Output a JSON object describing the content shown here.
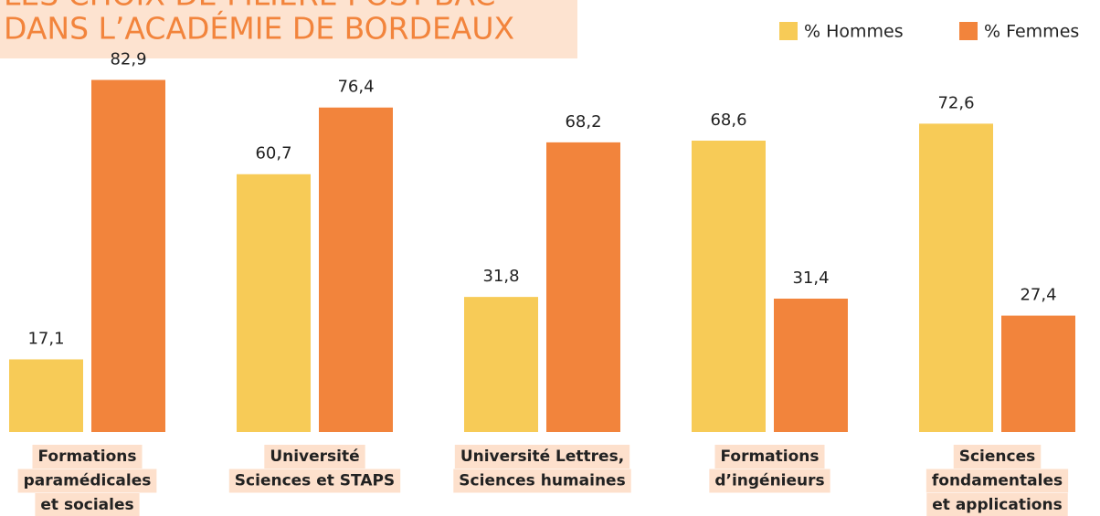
{
  "chart_data": {
    "type": "bar",
    "title": [
      "LES CHOIX DE FILIÈRE POST-BAC",
      "DANS L’ACADÉMIE DE BORDEAUX"
    ],
    "categories": [
      [
        "Formations",
        "paramédicales",
        "et sociales"
      ],
      [
        "Université",
        "Sciences et STAPS"
      ],
      [
        "Université Lettres,",
        "Sciences humaines"
      ],
      [
        "Formations",
        "d’ingénieurs"
      ],
      [
        "Sciences",
        "fondamentales",
        "et applications"
      ]
    ],
    "series": [
      {
        "name": "% Hommes",
        "color": "#f7cb57",
        "values": [
          17.1,
          60.7,
          31.8,
          68.6,
          72.6
        ],
        "value_labels": [
          "17,1",
          "60,7",
          "31,8",
          "68,6",
          "72,6"
        ]
      },
      {
        "name": "% Femmes",
        "color": "#f2843c",
        "values": [
          82.9,
          76.4,
          68.2,
          31.4,
          27.4
        ],
        "value_labels": [
          "82,9",
          "76,4",
          "68,2",
          "31,4",
          "27,4"
        ]
      }
    ],
    "ylim": [
      0,
      100
    ],
    "legend": "top-right"
  }
}
